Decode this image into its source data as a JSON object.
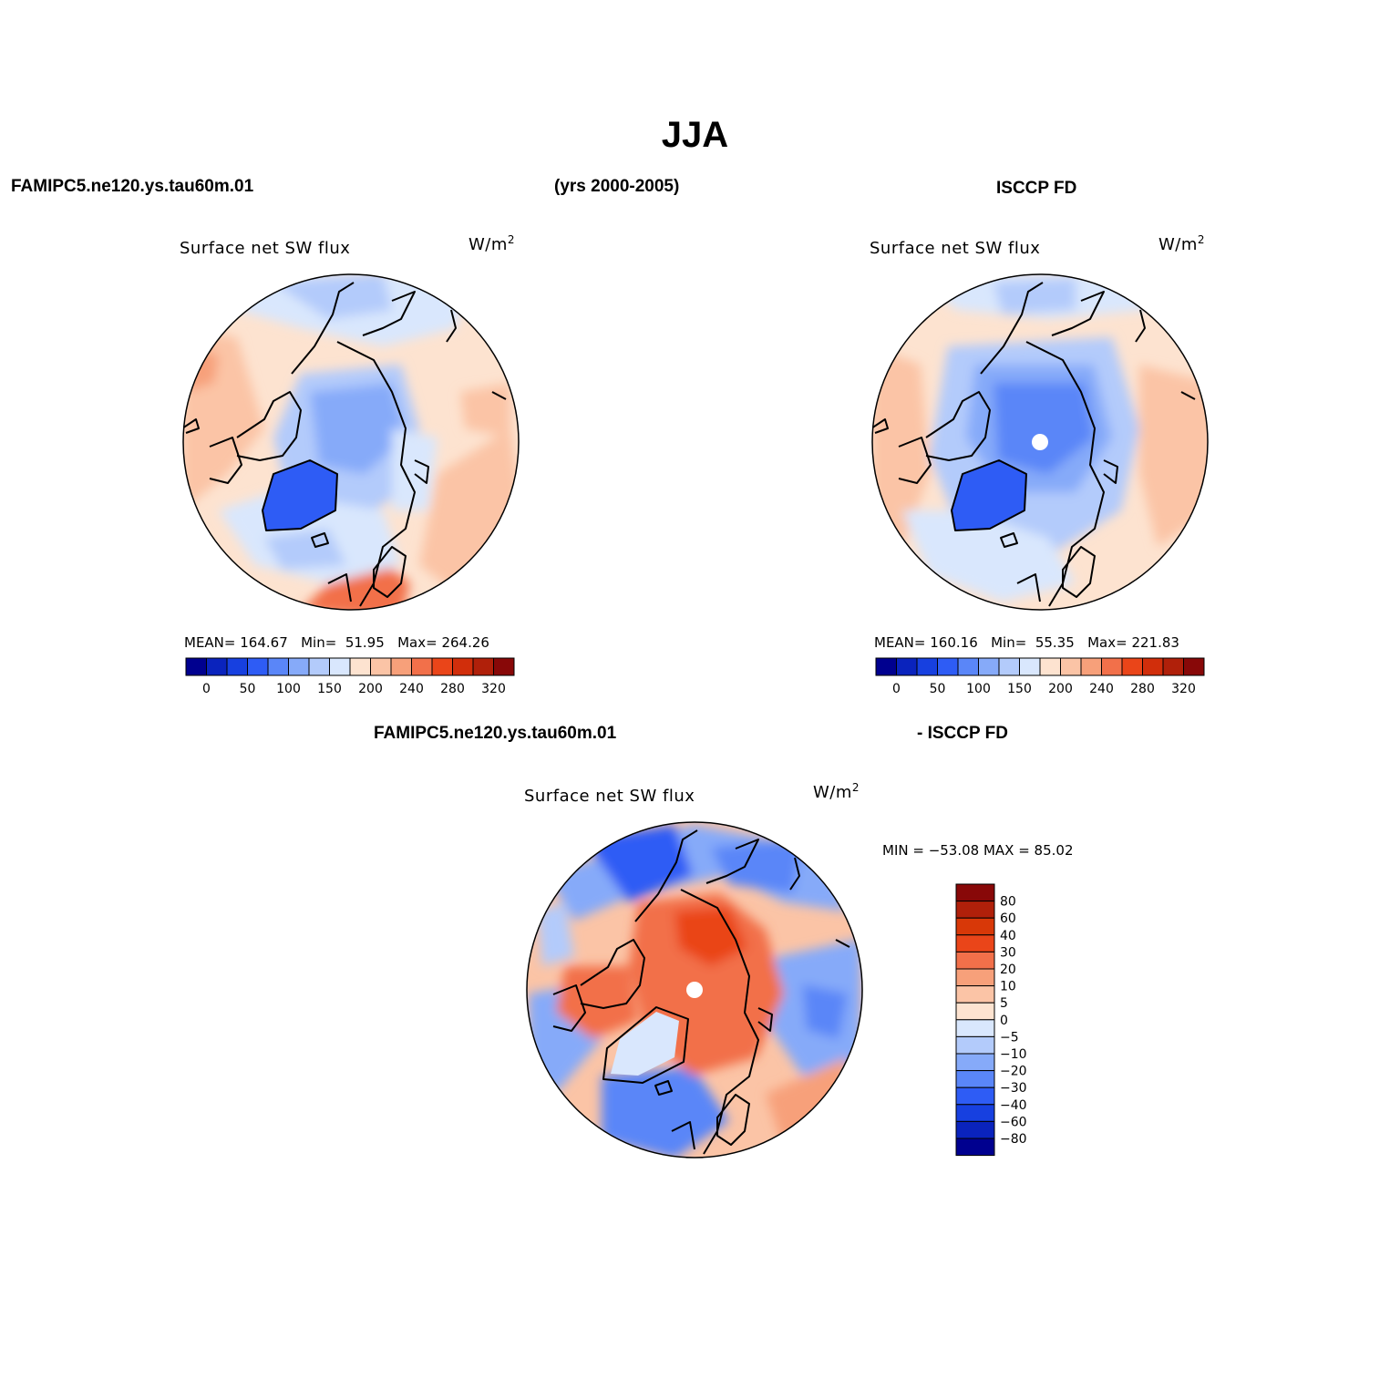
{
  "figure": {
    "title": "JJA",
    "top_left_case": "FAMIPC5.ne120.ys.tau60m.01",
    "years": "(yrs 2000-2005)",
    "top_right_case": "ISCCP FD",
    "diff_left": "FAMIPC5.ne120.ys.tau60m.01",
    "diff_right": "- ISCCP FD"
  },
  "panels": [
    {
      "variable": "Surface net SW flux",
      "units": "W/m",
      "units_sup": "2",
      "mean_label": "MEAN=",
      "mean": "164.67",
      "min_label": "Min=",
      "min": "51.95",
      "max_label": "Max=",
      "max": "264.26"
    },
    {
      "variable": "Surface net SW flux",
      "units": "W/m",
      "units_sup": "2",
      "mean_label": "MEAN=",
      "mean": "160.16",
      "min_label": "Min=",
      "min": "55.35",
      "max_label": "Max=",
      "max": "221.83"
    },
    {
      "variable": "Surface net SW flux",
      "units": "W/m",
      "units_sup": "2",
      "minmax_label": "MIN = −53.08 MAX =  85.02"
    }
  ],
  "colorbar_horizontal": {
    "colors": [
      "#00008f",
      "#0a23bd",
      "#1740e0",
      "#2e5cf5",
      "#5a86f8",
      "#86aaf9",
      "#b3cbfb",
      "#d9e7fd",
      "#fde3d0",
      "#fbc4a6",
      "#f7a07a",
      "#f2704a",
      "#ea4519",
      "#d12e0b",
      "#b0200a",
      "#880808"
    ],
    "ticks": [
      "0",
      "50",
      "100",
      "150",
      "200",
      "240",
      "280",
      "320"
    ]
  },
  "colorbar_vertical": {
    "colors": [
      "#880808",
      "#b0200a",
      "#d83808",
      "#ea4519",
      "#f2704a",
      "#f7a07a",
      "#fbc4a6",
      "#fde3d0",
      "#d9e7fd",
      "#b3cbfb",
      "#86aaf9",
      "#5a86f8",
      "#2e5cf5",
      "#1740e0",
      "#0a23bd",
      "#00008f"
    ],
    "ticks": [
      "80",
      "60",
      "40",
      "30",
      "20",
      "10",
      "5",
      "0",
      "−5",
      "−10",
      "−20",
      "−30",
      "−40",
      "−60",
      "−80"
    ]
  }
}
